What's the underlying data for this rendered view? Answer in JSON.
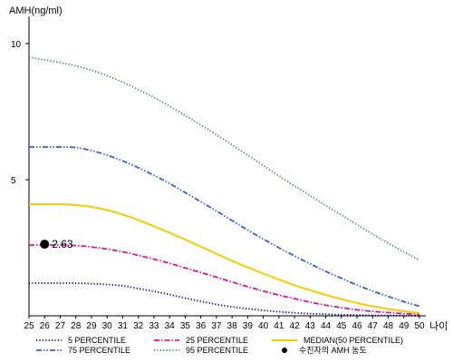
{
  "chart_data": {
    "type": "line",
    "ylabel": "AMH(ng/ml)",
    "xlabel": "나이",
    "x": [
      25,
      26,
      27,
      28,
      29,
      30,
      31,
      32,
      33,
      34,
      35,
      36,
      37,
      38,
      39,
      40,
      41,
      42,
      43,
      44,
      45,
      46,
      47,
      48,
      49,
      50
    ],
    "x_tick_labels": [
      "25",
      "26",
      "27",
      "28",
      "29",
      "30",
      "31",
      "32",
      "33",
      "34",
      "35",
      "36",
      "37",
      "38",
      "39",
      "40",
      "41",
      "42",
      "43",
      "44",
      "45",
      "46",
      "47",
      "48",
      "49",
      "50"
    ],
    "y_ticks": [
      5,
      10
    ],
    "y_tick_labels": [
      "5",
      "10"
    ],
    "ylim": [
      0,
      11
    ],
    "xlim": [
      25,
      50
    ],
    "grid": false,
    "legend_position": "bottom",
    "series": [
      {
        "name": "5 PERCENTILE",
        "color": "#00008b",
        "style": "dotted",
        "values": [
          1.2,
          1.2,
          1.2,
          1.2,
          1.18,
          1.15,
          1.1,
          1.0,
          0.9,
          0.78,
          0.65,
          0.53,
          0.42,
          0.33,
          0.26,
          0.2,
          0.15,
          0.11,
          0.08,
          0.06,
          0.04,
          0.03,
          0.02,
          0.01,
          0.01,
          0.0
        ]
      },
      {
        "name": "25 PERCENTILE",
        "color": "#e0158a",
        "style": "dashdot",
        "values": [
          2.6,
          2.6,
          2.6,
          2.58,
          2.53,
          2.45,
          2.35,
          2.22,
          2.08,
          1.93,
          1.76,
          1.59,
          1.42,
          1.24,
          1.07,
          0.91,
          0.76,
          0.63,
          0.5,
          0.39,
          0.3,
          0.22,
          0.16,
          0.12,
          0.08,
          0.05
        ]
      },
      {
        "name": "MEDIAN(50 PERCENTILE)",
        "color": "#f5cc00",
        "style": "solid",
        "values": [
          4.1,
          4.1,
          4.1,
          4.07,
          4.0,
          3.88,
          3.72,
          3.52,
          3.29,
          3.05,
          2.8,
          2.54,
          2.28,
          2.02,
          1.78,
          1.55,
          1.33,
          1.12,
          0.94,
          0.77,
          0.61,
          0.47,
          0.35,
          0.25,
          0.17,
          0.1
        ]
      },
      {
        "name": "75 PERCENTILE",
        "color": "#3a5fcd",
        "style": "dashdotdot",
        "values": [
          6.2,
          6.2,
          6.2,
          6.18,
          6.07,
          5.9,
          5.69,
          5.44,
          5.16,
          4.86,
          4.53,
          4.19,
          3.85,
          3.5,
          3.15,
          2.82,
          2.5,
          2.2,
          1.91,
          1.63,
          1.38,
          1.13,
          0.91,
          0.71,
          0.52,
          0.35
        ]
      },
      {
        "name": "95 PERCENTILE",
        "color": "#2e8b57",
        "style": "dotted",
        "values": [
          9.5,
          9.4,
          9.3,
          9.18,
          9.02,
          8.82,
          8.58,
          8.31,
          8.02,
          7.7,
          7.36,
          7.01,
          6.65,
          6.28,
          5.9,
          5.52,
          5.14,
          4.77,
          4.41,
          4.05,
          3.7,
          3.35,
          3.0,
          2.67,
          2.35,
          2.05
        ]
      }
    ],
    "points": [
      {
        "name": "수진자의 AMH 농도",
        "x": 26,
        "y": 2.63,
        "label": "2.63",
        "color": "#000000"
      }
    ]
  }
}
